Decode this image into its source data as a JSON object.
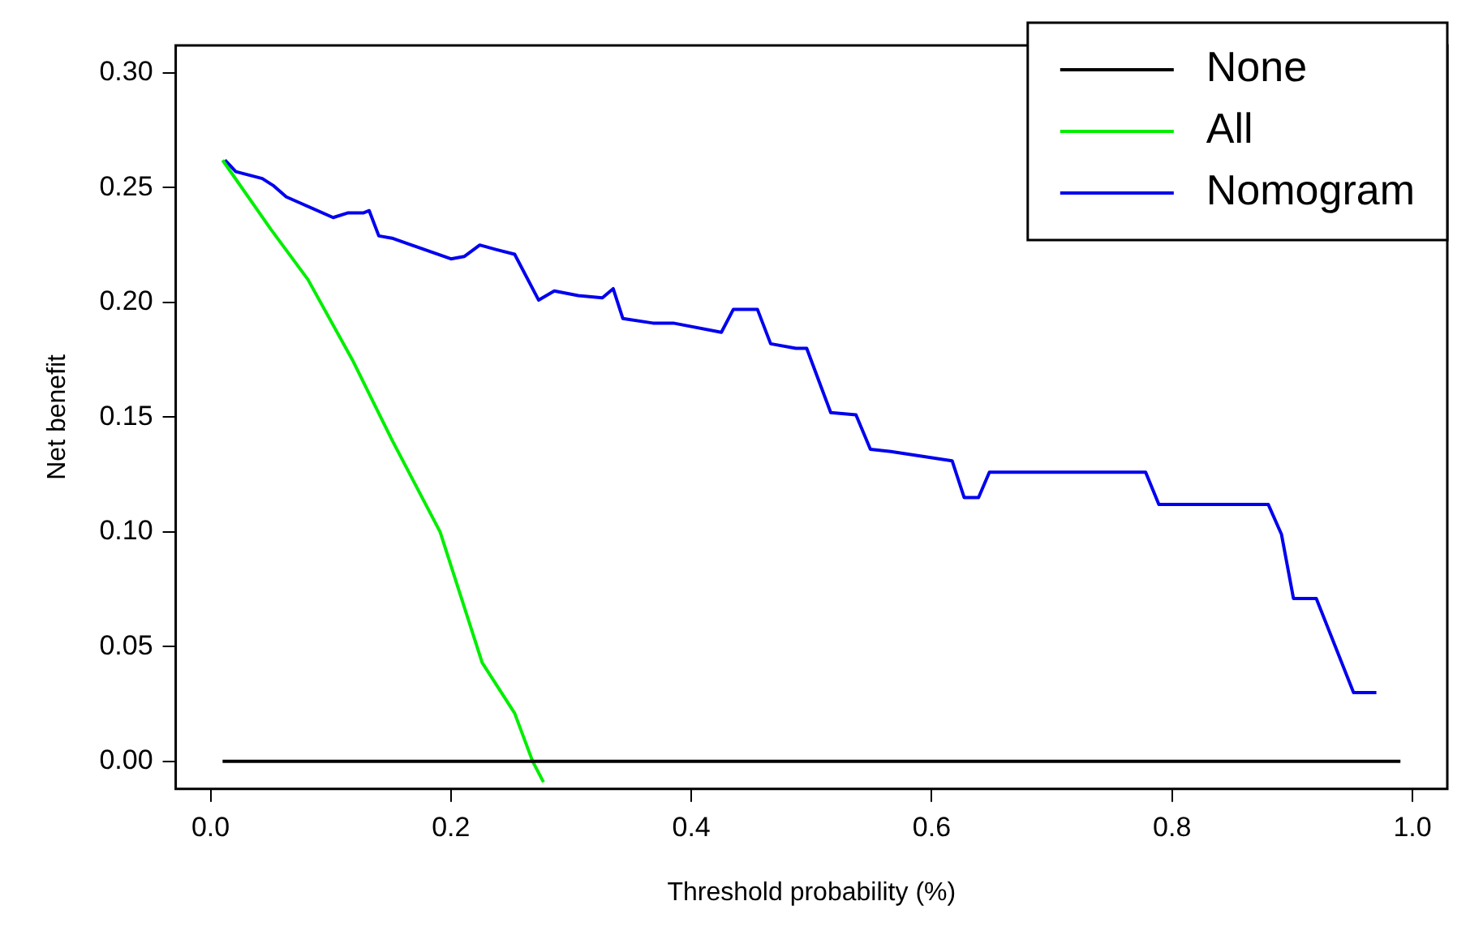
{
  "chart_data": {
    "type": "line",
    "xlabel": "Threshold probability (%)",
    "ylabel": "Net benefit",
    "xlim": [
      -0.029,
      1.029
    ],
    "ylim": [
      -0.012,
      0.312
    ],
    "xticks": [
      {
        "value": 0,
        "label": "0.0"
      },
      {
        "value": 0.2,
        "label": "0.2"
      },
      {
        "value": 0.4,
        "label": "0.4"
      },
      {
        "value": 0.6,
        "label": "0.6"
      },
      {
        "value": 0.8,
        "label": "0.8"
      },
      {
        "value": 1,
        "label": "1.0"
      }
    ],
    "yticks": [
      {
        "value": 0,
        "label": "0.00"
      },
      {
        "value": 0.05,
        "label": "0.05"
      },
      {
        "value": 0.1,
        "label": "0.10"
      },
      {
        "value": 0.15,
        "label": "0.15"
      },
      {
        "value": 0.2,
        "label": "0.20"
      },
      {
        "value": 0.25,
        "label": "0.25"
      },
      {
        "value": 0.3,
        "label": "0.30"
      }
    ],
    "grid": false,
    "legend": "top right",
    "marker": "none",
    "line_style": "solid",
    "series": [
      {
        "name": "None",
        "color": "#000000",
        "x": [
          0.01,
          0.99
        ],
        "values": [
          0,
          0
        ]
      },
      {
        "name": "All",
        "color": "#00ee00",
        "x": [
          0.01,
          0.05,
          0.081,
          0.118,
          0.151,
          0.191,
          0.226,
          0.253,
          0.268,
          0.277
        ],
        "values": [
          0.262,
          0.232,
          0.21,
          0.175,
          0.14,
          0.1,
          0.043,
          0.021,
          0,
          -0.009
        ]
      },
      {
        "name": "Nomogram",
        "color": "#0000ee",
        "x": [
          0.012,
          0.021,
          0.043,
          0.052,
          0.063,
          0.076,
          0.102,
          0.114,
          0.127,
          0.132,
          0.14,
          0.151,
          0.2,
          0.211,
          0.224,
          0.238,
          0.253,
          0.273,
          0.286,
          0.306,
          0.326,
          0.335,
          0.343,
          0.368,
          0.385,
          0.425,
          0.435,
          0.455,
          0.466,
          0.487,
          0.496,
          0.516,
          0.537,
          0.549,
          0.566,
          0.617,
          0.627,
          0.639,
          0.648,
          0.778,
          0.789,
          0.88,
          0.891,
          0.901,
          0.92,
          0.951,
          0.97
        ],
        "values": [
          0.262,
          0.257,
          0.254,
          0.251,
          0.246,
          0.243,
          0.237,
          0.239,
          0.239,
          0.24,
          0.229,
          0.228,
          0.219,
          0.22,
          0.225,
          0.223,
          0.221,
          0.201,
          0.205,
          0.203,
          0.202,
          0.206,
          0.193,
          0.191,
          0.191,
          0.187,
          0.197,
          0.197,
          0.182,
          0.18,
          0.18,
          0.152,
          0.151,
          0.136,
          0.135,
          0.131,
          0.115,
          0.115,
          0.126,
          0.126,
          0.112,
          0.112,
          0.099,
          0.071,
          0.071,
          0.03,
          0.03
        ]
      }
    ]
  }
}
